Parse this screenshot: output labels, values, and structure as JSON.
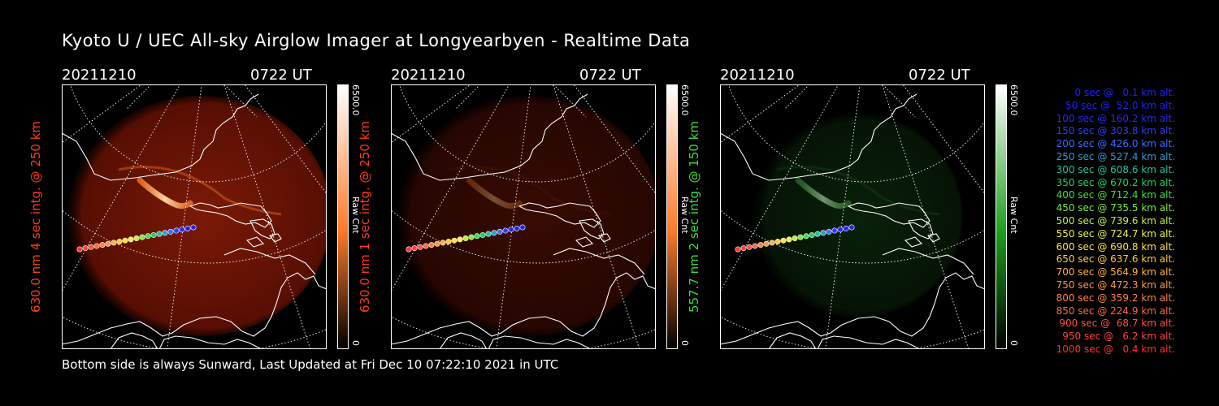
{
  "title": "Kyoto U / UEC All-sky Airglow Imager at Longyearbyen - Realtime Data",
  "footer": "Bottom side is always Sunward, Last Updated at Fri Dec 10 07:22:10 2021 in UTC",
  "panels": [
    {
      "date": "20211210",
      "time": "0722 UT",
      "ylabel": "630.0 nm 4 sec intg. @ 250 km",
      "ylabel_color": "#ff3b1f",
      "cbar_max": "6500.0",
      "cbar_min": "0",
      "cbar_unit": "Raw Cnt",
      "theme": "red",
      "brightness": 1.0
    },
    {
      "date": "20211210",
      "time": "0722 UT",
      "ylabel": "630.0 nm 1 sec intg. @ 250 km",
      "ylabel_color": "#ff3b1f",
      "cbar_max": "6500.0",
      "cbar_min": "0",
      "cbar_unit": "Raw Cnt",
      "theme": "red",
      "brightness": 0.35
    },
    {
      "date": "20211210",
      "time": "0722 UT",
      "ylabel": "557.7 nm 2 sec intg. @ 150 km",
      "ylabel_color": "#3fdc3f",
      "cbar_max": "6500.0",
      "cbar_min": "0",
      "cbar_unit": "Raw Cnt",
      "theme": "green",
      "brightness": 0.55
    }
  ],
  "legend": [
    {
      "text": "0 sec @   0.1 km alt.",
      "color": "#2020ff"
    },
    {
      "text": "50 sec @  52.0 km alt.",
      "color": "#2020ff"
    },
    {
      "text": "100 sec @ 160.2 km alt.",
      "color": "#2626ff"
    },
    {
      "text": "150 sec @ 303.8 km alt.",
      "color": "#2c3cff"
    },
    {
      "text": "200 sec @ 426.0 km alt.",
      "color": "#3a6cff"
    },
    {
      "text": "250 sec @ 527.4 km alt.",
      "color": "#2a9cd0"
    },
    {
      "text": "300 sec @ 608.6 km alt.",
      "color": "#20c0a0"
    },
    {
      "text": "350 sec @ 670.2 km alt.",
      "color": "#20d060"
    },
    {
      "text": "400 sec @ 712.4 km alt.",
      "color": "#40e040"
    },
    {
      "text": "450 sec @ 735.5 km alt.",
      "color": "#80e840"
    },
    {
      "text": "500 sec @ 739.6 km alt.",
      "color": "#c0f040"
    },
    {
      "text": "550 sec @ 724.7 km alt.",
      "color": "#f0f040"
    },
    {
      "text": "600 sec @ 690.8 km alt.",
      "color": "#ffe040"
    },
    {
      "text": "650 sec @ 637.6 km alt.",
      "color": "#ffc840"
    },
    {
      "text": "700 sec @ 564.9 km alt.",
      "color": "#ffb040"
    },
    {
      "text": "750 sec @ 472.3 km alt.",
      "color": "#ff9840"
    },
    {
      "text": "800 sec @ 359.2 km alt.",
      "color": "#ff8040"
    },
    {
      "text": "850 sec @ 224.9 km alt.",
      "color": "#ff6840"
    },
    {
      "text": "900 sec @  68.7 km alt.",
      "color": "#ff5040"
    },
    {
      "text": "950 sec @   6.2 km alt.",
      "color": "#ff4040"
    },
    {
      "text": "1000 sec @   0.4 km alt.",
      "color": "#ff3030"
    }
  ]
}
